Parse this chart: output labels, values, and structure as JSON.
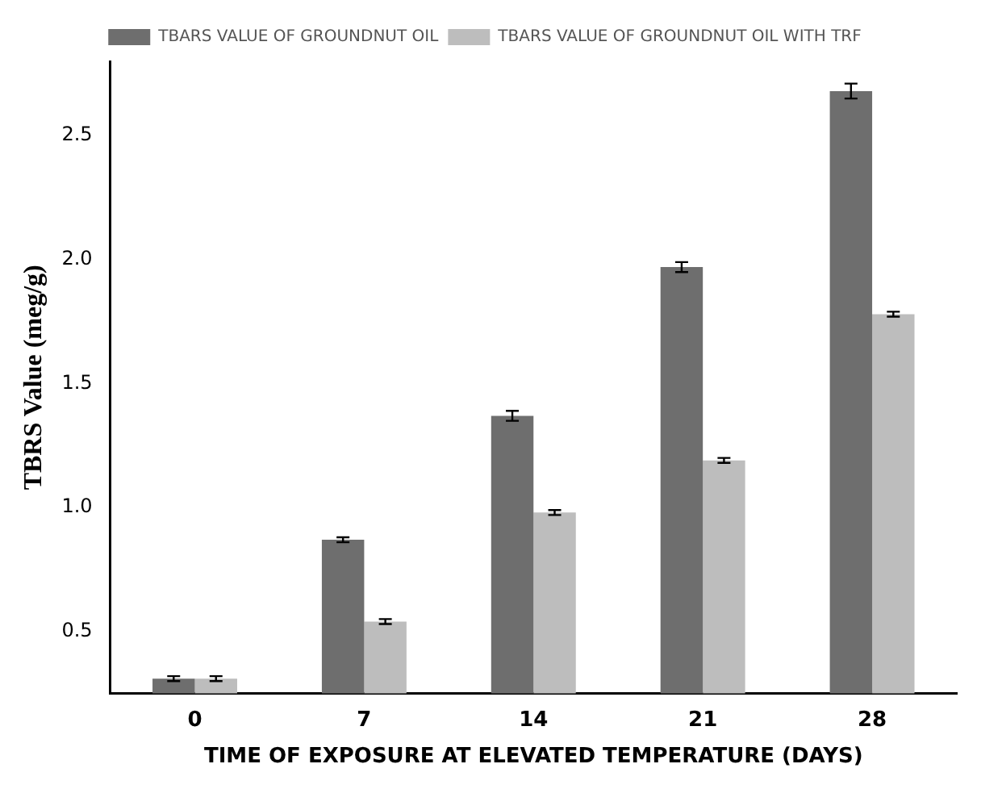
{
  "chart_data": {
    "type": "bar",
    "xlabel": "TIME OF EXPOSURE AT ELEVATED TEMPERATURE (DAYS)",
    "ylabel": "TBRS Value (meg/g)",
    "categories": [
      "0",
      "7",
      "14",
      "21",
      "28"
    ],
    "series": [
      {
        "name": "TBARS VALUE OF GROUNDNUT OIL",
        "color": "#6e6e6e",
        "values": [
          0.31,
          0.87,
          1.37,
          1.97,
          2.68
        ],
        "errors": [
          0.01,
          0.01,
          0.02,
          0.02,
          0.03
        ]
      },
      {
        "name": "TBARS VALUE OF GROUNDNUT OIL WITH TRF",
        "color": "#bdbdbd",
        "values": [
          0.31,
          0.54,
          0.98,
          1.19,
          1.78
        ],
        "errors": [
          0.01,
          0.01,
          0.01,
          0.01,
          0.01
        ]
      }
    ],
    "ylim": [
      0.25,
      2.8
    ],
    "yticks": [
      {
        "value": 0.5,
        "label": "0.5"
      },
      {
        "value": 1,
        "label": "1.0"
      },
      {
        "value": 1.5,
        "label": "1.5"
      },
      {
        "value": 2,
        "label": "2.0"
      },
      {
        "value": 2.5,
        "label": "2.5"
      }
    ],
    "grid": false,
    "legend": "top"
  }
}
